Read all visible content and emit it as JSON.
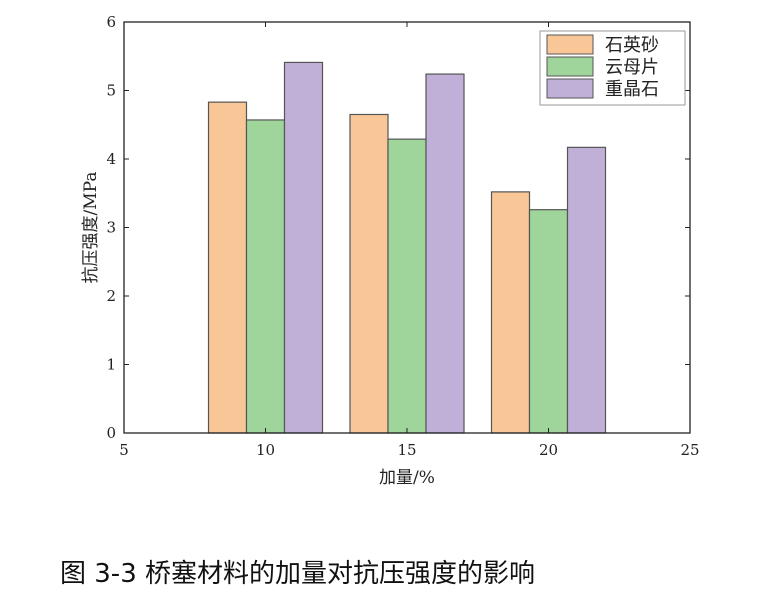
{
  "chart_data": {
    "type": "bar",
    "title": "",
    "xlabel": "加量/%",
    "ylabel": "抗压强度/MPa",
    "xlim": [
      5,
      25
    ],
    "ylim": [
      0,
      6
    ],
    "xticks": [
      5,
      10,
      15,
      20,
      25
    ],
    "yticks": [
      0,
      1,
      2,
      3,
      4,
      5,
      6
    ],
    "categories": [
      10,
      15,
      20
    ],
    "series": [
      {
        "name": "石英砂",
        "color": "#f9c797",
        "values": [
          4.83,
          4.65,
          3.52
        ]
      },
      {
        "name": "云母片",
        "color": "#9fd59b",
        "values": [
          4.57,
          4.29,
          3.26
        ]
      },
      {
        "name": "重晶石",
        "color": "#c0b0d8",
        "values": [
          5.41,
          5.24,
          4.17
        ]
      }
    ],
    "grid": false,
    "legend": "top-right"
  },
  "caption": "图 3-3  桥塞材料的加量对抗压强度的影响"
}
